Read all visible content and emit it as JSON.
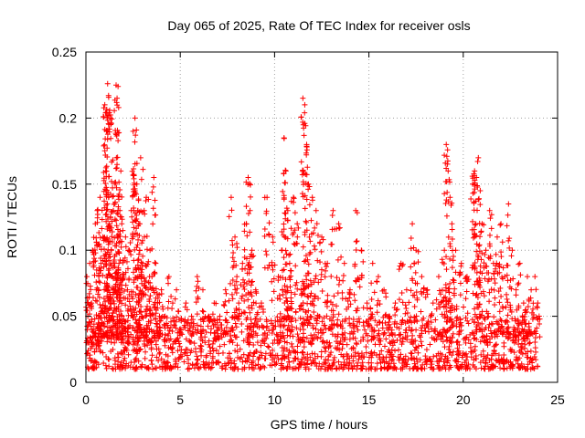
{
  "chart_data": {
    "type": "scatter",
    "title": "Day 065 of 2025, Rate Of TEC Index for receiver osls",
    "xlabel": "GPS time / hours",
    "ylabel": "ROTI / TECUs",
    "xlim": [
      0,
      25
    ],
    "ylim": [
      0,
      0.25
    ],
    "x_ticks": [
      0,
      5,
      10,
      15,
      20,
      25
    ],
    "y_ticks": [
      0,
      0.05,
      0.1,
      0.15,
      0.2,
      0.25
    ],
    "x_tick_labels": [
      "0",
      "5",
      "10",
      "15",
      "20",
      "25"
    ],
    "y_tick_labels": [
      "0",
      "0.05",
      "0.1",
      "0.15",
      "0.2",
      "0.25"
    ],
    "grid": true,
    "legend": "none",
    "marker": "plus",
    "color": "#ff0000",
    "series": [
      {
        "x": [
          0.05,
          0.1,
          0.15,
          0.2,
          0.3,
          0.35,
          0.4,
          0.5,
          0.55,
          0.6,
          0.7,
          0.75,
          0.8,
          0.9,
          1.0,
          1.05,
          1.1,
          1.15,
          1.2,
          1.2,
          1.25,
          1.3,
          1.35,
          1.4,
          1.45,
          1.5,
          1.55,
          1.6,
          1.65,
          1.7,
          1.75,
          1.8,
          1.85,
          1.9,
          2.0,
          2.1,
          2.2,
          2.3,
          2.4,
          2.5,
          2.6,
          2.7,
          2.75,
          2.8,
          2.85,
          2.9,
          3.0,
          3.1,
          3.2,
          3.3,
          3.4,
          3.5,
          3.6,
          3.7,
          3.8,
          3.9,
          4.0,
          4.2,
          4.4,
          4.6,
          4.8,
          5.0,
          5.3,
          5.6,
          5.9,
          6.2,
          6.5,
          6.8,
          7.1,
          7.4,
          7.7,
          7.9,
          8.0,
          8.1,
          8.3,
          8.5,
          8.6,
          8.7,
          8.8,
          9.0,
          9.3,
          9.6,
          9.9,
          10.2,
          10.4,
          10.5,
          10.6,
          10.7,
          10.8,
          11.0,
          11.2,
          11.4,
          11.5,
          11.6,
          11.7,
          11.8,
          12.0,
          12.2,
          12.5,
          12.8,
          13.1,
          13.4,
          13.7,
          14.0,
          14.3,
          14.6,
          14.9,
          15.2,
          15.5,
          15.8,
          16.1,
          16.4,
          16.7,
          17.0,
          17.3,
          17.5,
          17.8,
          18.1,
          18.4,
          18.7,
          19.0,
          19.1,
          19.2,
          19.3,
          19.4,
          19.6,
          19.9,
          20.2,
          20.5,
          20.6,
          20.7,
          20.8,
          20.9,
          21.0,
          21.2,
          21.4,
          21.6,
          21.8,
          22.0,
          22.2,
          22.4,
          22.6,
          22.8,
          23.0,
          23.2,
          23.4,
          23.6,
          23.8,
          23.95
        ],
        "y": [
          0.08,
          0.05,
          0.03,
          0.09,
          0.06,
          0.1,
          0.04,
          0.12,
          0.07,
          0.13,
          0.05,
          0.14,
          0.09,
          0.11,
          0.21,
          0.16,
          0.19,
          0.226,
          0.217,
          0.14,
          0.12,
          0.2,
          0.1,
          0.08,
          0.13,
          0.07,
          0.15,
          0.225,
          0.215,
          0.11,
          0.09,
          0.13,
          0.16,
          0.12,
          0.08,
          0.11,
          0.07,
          0.1,
          0.13,
          0.19,
          0.2,
          0.15,
          0.13,
          0.12,
          0.1,
          0.17,
          0.09,
          0.11,
          0.14,
          0.07,
          0.1,
          0.08,
          0.155,
          0.09,
          0.06,
          0.05,
          0.07,
          0.05,
          0.08,
          0.06,
          0.07,
          0.04,
          0.06,
          0.05,
          0.08,
          0.07,
          0.05,
          0.06,
          0.05,
          0.07,
          0.14,
          0.11,
          0.08,
          0.06,
          0.09,
          0.12,
          0.155,
          0.13,
          0.1,
          0.07,
          0.06,
          0.14,
          0.11,
          0.08,
          0.1,
          0.185,
          0.16,
          0.13,
          0.09,
          0.14,
          0.12,
          0.07,
          0.215,
          0.21,
          0.18,
          0.15,
          0.14,
          0.13,
          0.11,
          0.09,
          0.13,
          0.12,
          0.09,
          0.07,
          0.13,
          0.1,
          0.06,
          0.09,
          0.08,
          0.07,
          0.05,
          0.06,
          0.09,
          0.07,
          0.12,
          0.1,
          0.08,
          0.07,
          0.06,
          0.08,
          0.1,
          0.18,
          0.16,
          0.14,
          0.12,
          0.1,
          0.09,
          0.08,
          0.15,
          0.16,
          0.155,
          0.17,
          0.145,
          0.12,
          0.1,
          0.13,
          0.09,
          0.11,
          0.12,
          0.08,
          0.135,
          0.1,
          0.07,
          0.09,
          0.06,
          0.08,
          0.07,
          0.08,
          0.06
        ],
        "noise_floor": {
          "x_range": [
            0.05,
            23.95
          ],
          "y_range": [
            0.01,
            0.05
          ]
        }
      }
    ]
  }
}
